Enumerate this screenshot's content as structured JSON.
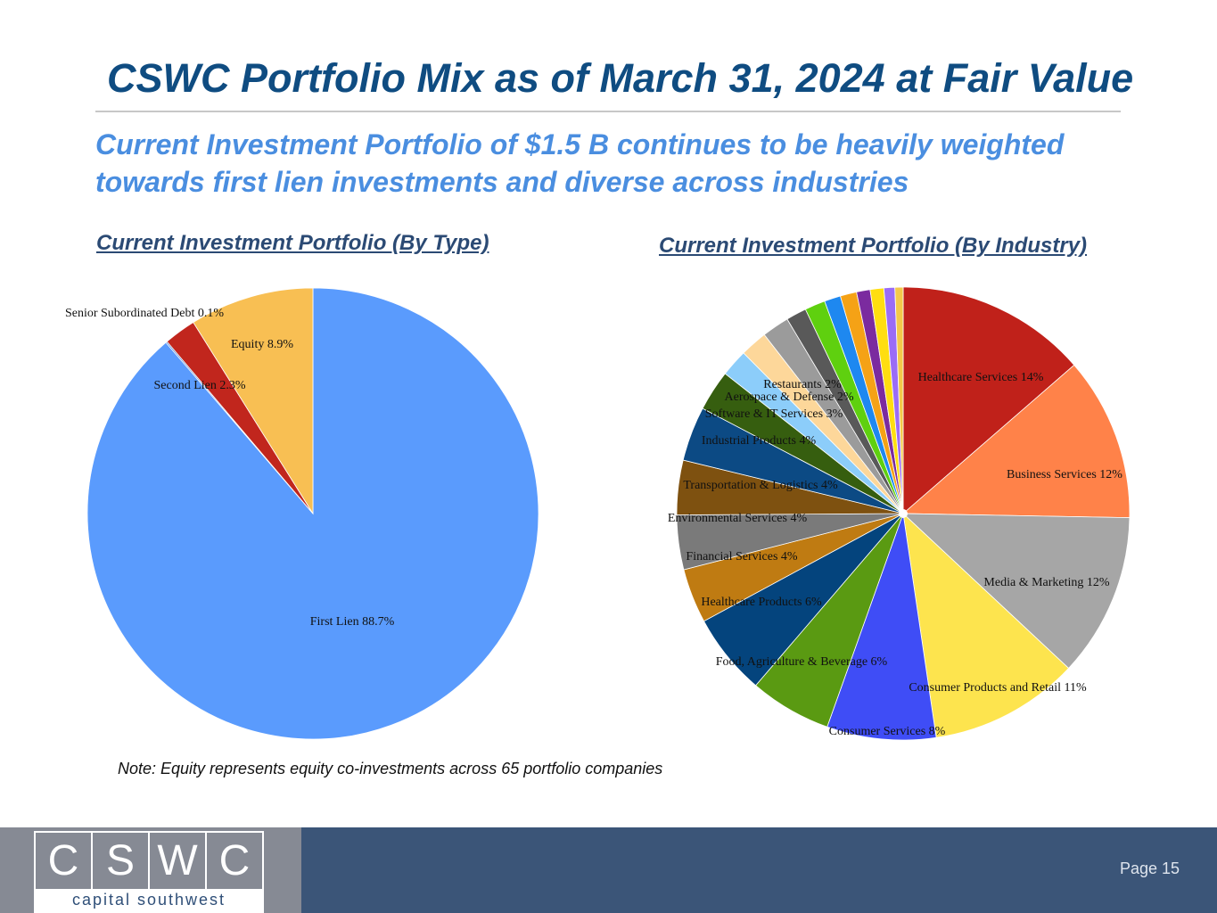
{
  "title": "CSWC Portfolio Mix as of March 31, 2024 at Fair Value",
  "subtitle": "Current Investment Portfolio of $1.5 B continues to be heavily weighted towards first lien investments and diverse across industries",
  "note": "Note: Equity represents equity co-investments across 65 portfolio companies",
  "logo": {
    "letters": [
      "C",
      "S",
      "W",
      "C"
    ],
    "caption": "capital southwest"
  },
  "page_label": "Page 15",
  "chart_data": [
    {
      "type": "pie",
      "title": "Current Investment Portfolio (By Type)",
      "start": "12 o'clock, clockwise",
      "slices": [
        {
          "name": "First Lien",
          "value": 88.7,
          "label": "First Lien 88.7%",
          "color": "#5a9bfd"
        },
        {
          "name": "Senior Subordinated Debt",
          "value": 0.1,
          "label": "Senior Subordinated Debt 0.1%",
          "color": "#3f78c8"
        },
        {
          "name": "Second Lien",
          "value": 2.3,
          "label": "Second Lien 2.3%",
          "color": "#c1261d"
        },
        {
          "name": "Equity",
          "value": 8.9,
          "label": "Equity 8.9%",
          "color": "#f8bf53"
        }
      ]
    },
    {
      "type": "pie",
      "title": "Current Investment Portfolio (By Industry)",
      "start": "12 o'clock, clockwise",
      "slices": [
        {
          "name": "Healthcare Services",
          "value": 14,
          "label": "Healthcare Services 14%",
          "color": "#c0211a"
        },
        {
          "name": "Business Services",
          "value": 12,
          "label": "Business Services 12%",
          "color": "#ff8249"
        },
        {
          "name": "Media & Marketing",
          "value": 12,
          "label": "Media & Marketing 12%",
          "color": "#a6a6a6"
        },
        {
          "name": "Consumer Products and Retail",
          "value": 11,
          "label": "Consumer Products and Retail 11%",
          "color": "#fde44e"
        },
        {
          "name": "Consumer Services",
          "value": 8,
          "label": "Consumer Services 8%",
          "color": "#3f4df6"
        },
        {
          "name": "Food, Agriculture & Beverage",
          "value": 6,
          "label": "Food, Agriculture & Beverage 6%",
          "color": "#5a9a12"
        },
        {
          "name": "Healthcare Products",
          "value": 6,
          "label": "Healthcare Products 6%",
          "color": "#04447d"
        },
        {
          "name": "Financial Services",
          "value": 4,
          "label": "Financial Services 4%",
          "color": "#bf7b12"
        },
        {
          "name": "Environmental Services",
          "value": 4,
          "label": "Environmental Services 4%",
          "color": "#7a7a7a"
        },
        {
          "name": "Transportation & Logistics",
          "value": 4,
          "label": "Transportation & Logistics 4%",
          "color": "#7e5110"
        },
        {
          "name": "Industrial Products",
          "value": 4,
          "label": "Industrial Products 4%",
          "color": "#0c4a84"
        },
        {
          "name": "Software & IT Services",
          "value": 3,
          "label": "Software & IT Services 3%",
          "color": "#365e0f"
        },
        {
          "name": "Aerospace & Defense",
          "value": 2,
          "label": "Aerospace & Defense 2%",
          "color": "#8ccdfa"
        },
        {
          "name": "Restaurants",
          "value": 2,
          "label": "Restaurants 2%",
          "color": "#fdd79a"
        },
        {
          "name": "",
          "value": 2,
          "label": "",
          "color": "#9b9b9b"
        },
        {
          "name": "",
          "value": 1.5,
          "label": "",
          "color": "#595959"
        },
        {
          "name": "",
          "value": 1.5,
          "label": "",
          "color": "#5fd00f"
        },
        {
          "name": "",
          "value": 1.2,
          "label": "",
          "color": "#1e88f0"
        },
        {
          "name": "",
          "value": 1.2,
          "label": "",
          "color": "#f5a216"
        },
        {
          "name": "",
          "value": 1.0,
          "label": "",
          "color": "#7b2b9f"
        },
        {
          "name": "",
          "value": 1.0,
          "label": "",
          "color": "#ffde10"
        },
        {
          "name": "",
          "value": 0.8,
          "label": "",
          "color": "#9a6cf6"
        },
        {
          "name": "",
          "value": 0.6,
          "label": "",
          "color": "#f3c94a"
        }
      ]
    }
  ]
}
